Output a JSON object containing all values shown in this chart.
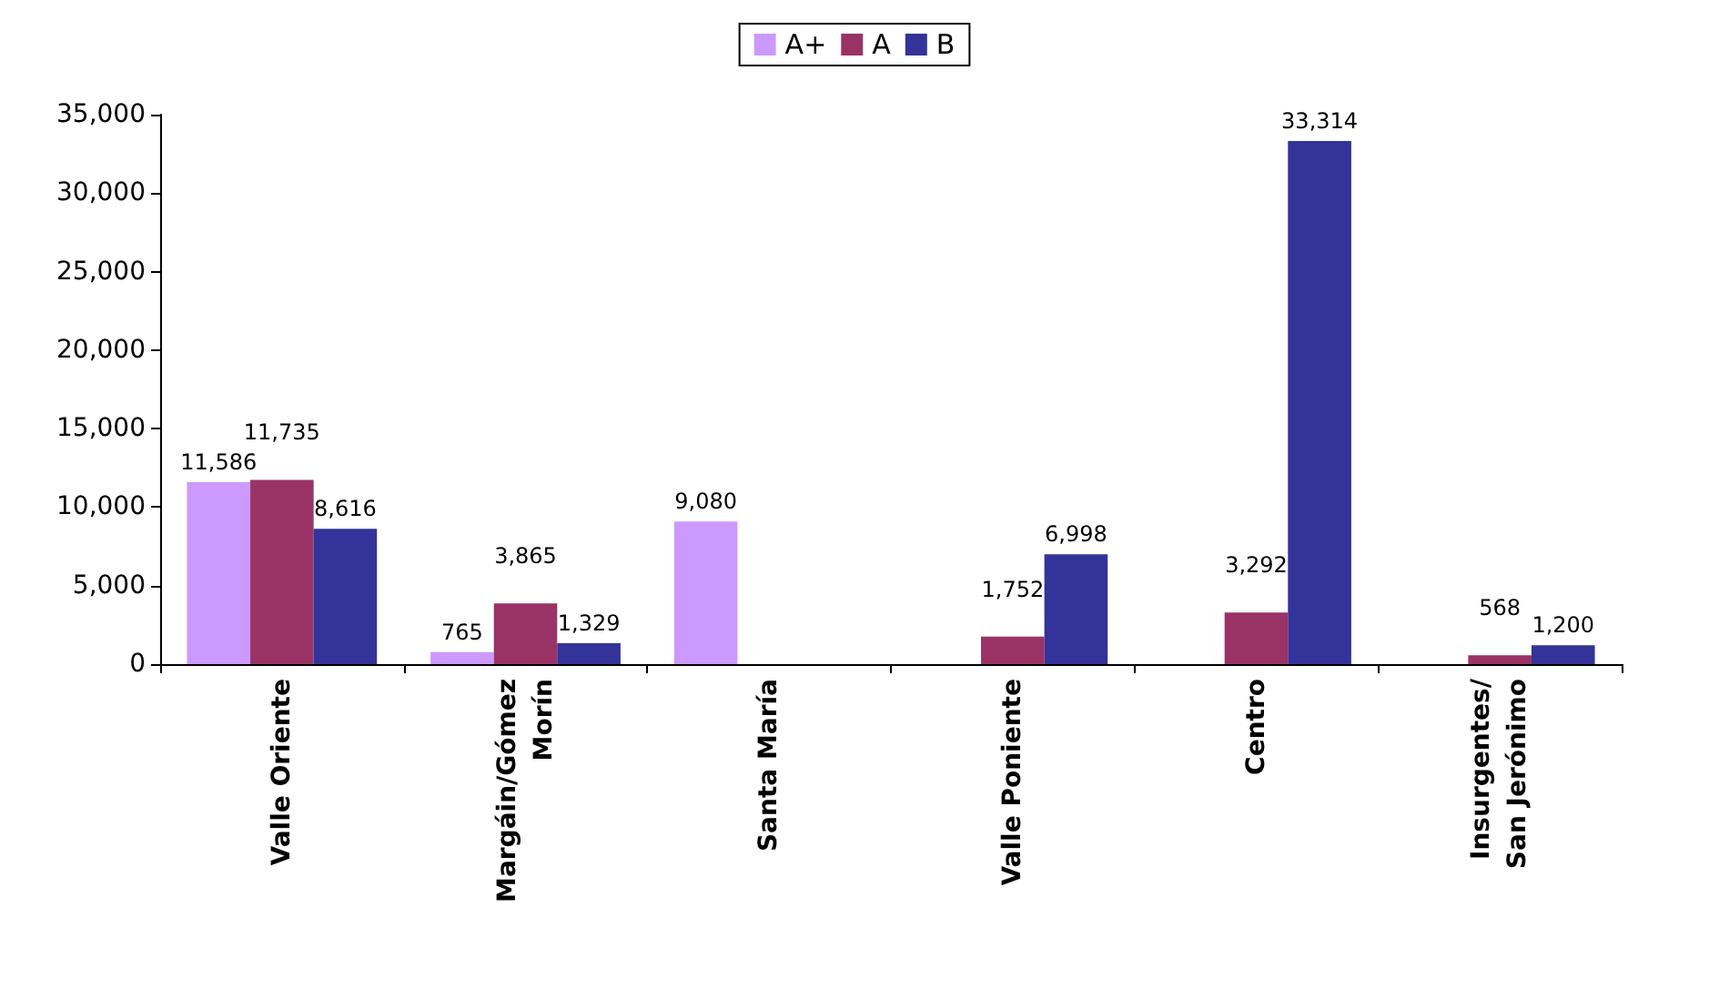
{
  "chart_data": {
    "type": "bar",
    "categories": [
      "Valle Oriente",
      "Margáin/Gómez\nMorín",
      "Santa María",
      "Valle Poniente",
      "Centro",
      "Insurgentes/\nSan Jerónimo"
    ],
    "series": [
      {
        "name": "A+",
        "color": "#cc99ff",
        "values": [
          11586,
          765,
          9080,
          null,
          null,
          null
        ],
        "value_labels": [
          "11,586",
          "765",
          "9,080",
          null,
          null,
          null
        ]
      },
      {
        "name": "A",
        "color": "#993366",
        "values": [
          11735,
          3865,
          null,
          1752,
          3292,
          568
        ],
        "value_labels": [
          "11,735",
          "3,865",
          null,
          "1,752",
          "3,292",
          "568"
        ]
      },
      {
        "name": "B",
        "color": "#333399",
        "values": [
          8616,
          1329,
          null,
          6998,
          33314,
          1200
        ],
        "value_labels": [
          "8,616",
          "1,329",
          null,
          "6,998",
          "33,314",
          "1,200"
        ]
      }
    ],
    "ylim": [
      0,
      35000
    ],
    "yticks": [
      {
        "value": 0,
        "label": "0"
      },
      {
        "value": 5000,
        "label": "5,000"
      },
      {
        "value": 10000,
        "label": "10,000"
      },
      {
        "value": 15000,
        "label": "15,000"
      },
      {
        "value": 20000,
        "label": "20,000"
      },
      {
        "value": 25000,
        "label": "25,000"
      },
      {
        "value": 30000,
        "label": "30,000"
      },
      {
        "value": 35000,
        "label": "35,000"
      }
    ],
    "grid": false,
    "legend": "top"
  }
}
